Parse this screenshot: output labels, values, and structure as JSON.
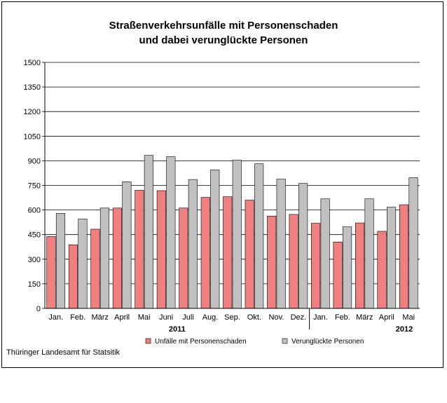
{
  "chart_data": {
    "type": "bar",
    "title_lines": [
      "Straßenverkehrsunfälle mit Personenschaden",
      "und dabei verunglückte Personen"
    ],
    "categories": [
      "Jan.",
      "Feb.",
      "März",
      "April",
      "Mai",
      "Juni",
      "Juli",
      "Aug.",
      "Sep.",
      "Okt.",
      "Nov.",
      "Dez.",
      "Jan.",
      "Feb.",
      "März",
      "April",
      "Mai"
    ],
    "year_groups": [
      {
        "label": "2011",
        "start": 0,
        "end": 11
      },
      {
        "label": "2012",
        "start": 12,
        "end": 16
      }
    ],
    "ylim": [
      0,
      1500
    ],
    "yticks": [
      0,
      150,
      300,
      450,
      600,
      750,
      900,
      1050,
      1200,
      1350,
      1500
    ],
    "grid": true,
    "legend_position": "bottom",
    "series": [
      {
        "name": "Unfälle mit Personenschaden",
        "color": "#f08080",
        "values": [
          438,
          388,
          483,
          612,
          720,
          718,
          612,
          677,
          681,
          660,
          563,
          573,
          519,
          405,
          521,
          470,
          632
        ]
      },
      {
        "name": "Verunglückte Personen",
        "color": "#c0c0c0",
        "values": [
          580,
          545,
          612,
          772,
          933,
          925,
          786,
          845,
          905,
          882,
          788,
          762,
          668,
          497,
          668,
          617,
          797
        ]
      }
    ]
  },
  "source": "Thüringer Landesamt für Statsitik"
}
